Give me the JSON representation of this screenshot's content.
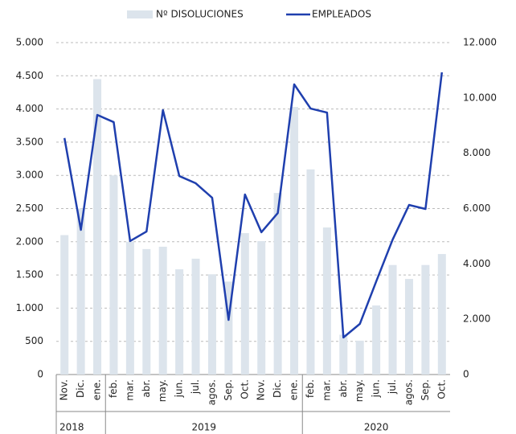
{
  "chart_data": {
    "type": "bar_line",
    "groups": [
      {
        "label": "2018",
        "categories": [
          "Nov.",
          "Dic.",
          "ene."
        ]
      },
      {
        "label": "2019",
        "categories": [
          "feb.",
          "mar.",
          "abr.",
          "may.",
          "jun.",
          "jul.",
          "agos.",
          "Sep.",
          "Oct.",
          "Nov.",
          "Dic.",
          "ene."
        ]
      },
      {
        "label": "2020",
        "categories": [
          "feb.",
          "mar.",
          "abr.",
          "may.",
          "jun.",
          "jul.",
          "agos.",
          "Sep.",
          "Oct."
        ]
      }
    ],
    "series": [
      {
        "name": "Nº DISOLUCIONES",
        "type": "bar",
        "color": "#dce4ec",
        "values": [
          2100,
          2500,
          4450,
          3000,
          2000,
          1890,
          1925,
          1585,
          1745,
          1510,
          1400,
          2130,
          2010,
          2735,
          4030,
          3090,
          2215,
          600,
          510,
          1040,
          1650,
          1440,
          1650,
          1815
        ]
      },
      {
        "name": "EMPLEADOS",
        "type": "line",
        "axis": "y2",
        "color": "#1f3fae",
        "values": [
          8550,
          5230,
          9385,
          9125,
          4825,
          5170,
          9560,
          7175,
          6915,
          6390,
          1975,
          6510,
          5145,
          5840,
          10490,
          9615,
          9470,
          1340,
          1830,
          3370,
          4880,
          6130,
          5985,
          10925
        ]
      }
    ],
    "ylim": [
      0,
      5000
    ],
    "yticks": [
      0,
      500,
      {
        "value": 1000,
        "label": "1.000"
      },
      {
        "value": 1500,
        "label": "1.500"
      },
      {
        "value": 2000,
        "label": "2.000"
      },
      {
        "value": 2500,
        "label": "2.500"
      },
      {
        "value": 3000,
        "label": "3.000"
      },
      {
        "value": 3500,
        "label": "3.500"
      },
      {
        "value": 4000,
        "label": "4.000"
      },
      {
        "value": 4500,
        "label": "4.500"
      },
      {
        "value": 5000,
        "label": "5.000"
      }
    ],
    "y2lim": [
      0,
      12000
    ],
    "y2ticks": [
      0,
      {
        "value": 2000,
        "label": "2.000"
      },
      {
        "value": 4000,
        "label": "4.000"
      },
      {
        "value": 6000,
        "label": "6.000"
      },
      {
        "value": 8000,
        "label": "8.000"
      },
      {
        "value": 10000,
        "label": "10.000"
      },
      {
        "value": 12000,
        "label": "12.000"
      }
    ],
    "grid": true,
    "legend": "top"
  }
}
